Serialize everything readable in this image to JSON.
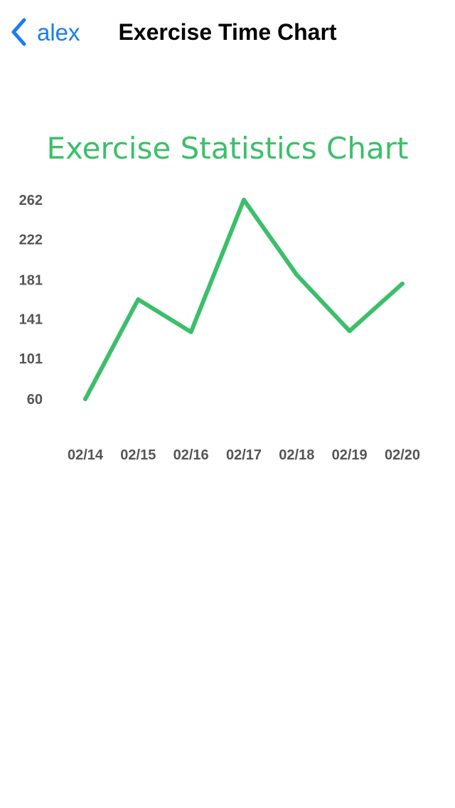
{
  "nav": {
    "back_label": "alex",
    "title": "Exercise Time Chart"
  },
  "colors": {
    "accent": "#1a7cf5",
    "line": "#3cbf6a",
    "tick_text": "#555555"
  },
  "chart_data": {
    "type": "line",
    "title": "Exercise Statistics Chart",
    "xlabel": "",
    "ylabel": "",
    "categories": [
      "02/14",
      "02/15",
      "02/16",
      "02/17",
      "02/18",
      "02/19",
      "02/20"
    ],
    "series": [
      {
        "values": [
          60,
          161,
          128,
          262,
          186,
          129,
          177
        ]
      }
    ],
    "yticks": [
      "60",
      "101",
      "141",
      "181",
      "222",
      "262"
    ],
    "ylim": [
      60,
      262
    ],
    "grid": false,
    "legend": "none"
  }
}
